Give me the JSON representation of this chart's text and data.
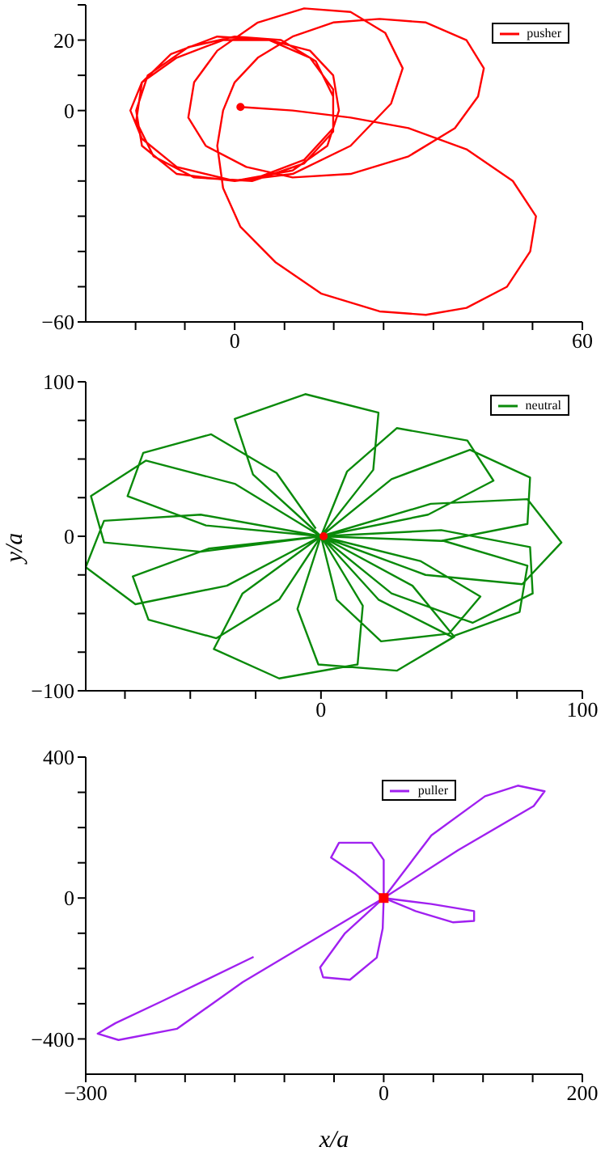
{
  "chart_data": [
    {
      "type": "line",
      "xlim": [
        -25.7,
        60
      ],
      "xticks": [
        {
          "value": -17.1,
          "label": null
        },
        {
          "value": -8.6,
          "label": null
        },
        0,
        {
          "value": 8.6,
          "label": null
        },
        {
          "value": 17.1,
          "label": null
        },
        {
          "value": 25.7,
          "label": null
        },
        {
          "value": 34.3,
          "label": null
        },
        {
          "value": 42.9,
          "label": null
        },
        {
          "value": 51.4,
          "label": null
        },
        60
      ],
      "ylim": [
        -60,
        30
      ],
      "yticks": [
        -60,
        {
          "value": -50,
          "label": null
        },
        {
          "value": -40,
          "label": null
        },
        {
          "value": -30,
          "label": null
        },
        {
          "value": -20,
          "label": null
        },
        {
          "value": -10,
          "label": null
        },
        0,
        {
          "value": 10,
          "label": null
        },
        20,
        {
          "value": 30,
          "label": null
        }
      ],
      "legend": "top right",
      "series": [
        {
          "name": "pusher",
          "color": "#ff0000",
          "x": [
            1,
            10,
            20,
            30,
            40,
            48,
            52,
            51,
            47,
            40,
            33,
            25,
            15,
            7,
            1,
            -2,
            -3,
            -2,
            0,
            4,
            10,
            17,
            25,
            33,
            40,
            43,
            42,
            38,
            30,
            20,
            10,
            2,
            -5,
            -8,
            -7,
            -3,
            4,
            12,
            20,
            26,
            29,
            27,
            20,
            10,
            0,
            -10,
            -16,
            -18,
            -16,
            -10,
            -2,
            6,
            13,
            17,
            18,
            16,
            10,
            0,
            -10,
            -16,
            -17,
            -15,
            -8,
            0,
            8,
            14,
            17,
            17,
            12,
            3,
            -7,
            -14,
            -17,
            -16,
            -11,
            -3,
            6,
            13,
            17,
            17,
            12,
            4
          ],
          "values": [
            1,
            0,
            -2,
            -5,
            -11,
            -20,
            -30,
            -40,
            -50,
            -56,
            -58,
            -57,
            -52,
            -43,
            -33,
            -22,
            -10,
            0,
            8,
            15,
            21,
            25,
            26,
            25,
            20,
            12,
            4,
            -5,
            -13,
            -18,
            -19,
            -16,
            -10,
            -2,
            8,
            17,
            25,
            29,
            28,
            22,
            12,
            2,
            -10,
            -18,
            -20,
            -16,
            -8,
            0,
            8,
            15,
            20,
            20,
            17,
            10,
            0,
            -10,
            -17,
            -20,
            -18,
            -10,
            0,
            10,
            18,
            21,
            20,
            14,
            4,
            -6,
            -15,
            -20,
            -19,
            -13,
            -3,
            8,
            16,
            21,
            20,
            15,
            6,
            -5,
            -14,
            -19
          ]
        },
        {
          "type": "scatter",
          "color": "#ff0000",
          "marker": "circle",
          "x": [
            1
          ],
          "values": [
            1
          ]
        }
      ]
    },
    {
      "type": "line",
      "xlim": [
        -90,
        100
      ],
      "xticks": [
        {
          "value": -75,
          "label": null
        },
        {
          "value": -50,
          "label": null
        },
        {
          "value": -25,
          "label": null
        },
        0,
        {
          "value": 25,
          "label": null
        },
        {
          "value": 50,
          "label": null
        },
        {
          "value": 75,
          "label": null
        },
        100
      ],
      "ylim": [
        -100,
        100
      ],
      "yticks": [
        -100,
        {
          "value": -75,
          "label": null
        },
        {
          "value": -50,
          "label": null
        },
        {
          "value": -25,
          "label": null
        },
        0,
        {
          "value": 25,
          "label": null
        },
        {
          "value": 50,
          "label": null
        },
        {
          "value": 75,
          "label": null
        },
        100
      ],
      "ylabel": "y/a",
      "legend": "top right",
      "series": [
        {
          "name": "neutral",
          "color": "#0a8a0a",
          "x": [
            0,
            -26,
            -33,
            -6,
            22,
            20,
            0,
            10,
            29,
            56,
            66,
            41,
            0,
            27,
            57,
            80,
            79,
            46,
            0,
            42,
            79,
            92,
            77,
            40,
            0,
            46,
            80,
            81,
            58,
            27,
            0,
            47,
            79,
            76,
            50,
            22,
            0,
            38,
            61,
            49,
            23,
            6,
            0,
            35,
            51,
            29,
            -1,
            -9,
            0,
            16,
            14,
            -16,
            -41,
            -30,
            0,
            -16,
            -40,
            -66,
            -72,
            -43,
            0,
            -36,
            -71,
            -90,
            -83,
            -46,
            0,
            -46,
            -83,
            -88,
            -67,
            -33,
            0,
            -44,
            -74,
            -68,
            -42,
            -17,
            -2
          ],
          "values": [
            0,
            40,
            76,
            92,
            80,
            43,
            0,
            42,
            70,
            62,
            36,
            14,
            0,
            37,
            56,
            38,
            8,
            -3,
            0,
            21,
            24,
            -4,
            -31,
            -25,
            0,
            4,
            -7,
            -37,
            -56,
            -37,
            0,
            -3,
            -19,
            -49,
            -65,
            -41,
            0,
            -16,
            -39,
            -63,
            -68,
            -41,
            0,
            -32,
            -65,
            -87,
            -83,
            -47,
            0,
            -45,
            -83,
            -92,
            -73,
            -37,
            0,
            -41,
            -66,
            -54,
            -26,
            -8,
            0,
            -32,
            -44,
            -20,
            10,
            14,
            0,
            -10,
            -4,
            26,
            49,
            34,
            0,
            7,
            26,
            54,
            66,
            41,
            5
          ]
        },
        {
          "type": "scatter",
          "color": "#ff0000",
          "marker": "circle",
          "x": [
            1
          ],
          "values": [
            0
          ]
        }
      ]
    },
    {
      "type": "line",
      "xlim": [
        -300,
        200
      ],
      "xticks": [
        -300,
        {
          "value": -250,
          "label": null
        },
        {
          "value": -200,
          "label": null
        },
        {
          "value": -150,
          "label": null
        },
        {
          "value": -100,
          "label": null
        },
        {
          "value": -50,
          "label": null
        },
        0,
        {
          "value": 50,
          "label": null
        },
        {
          "value": 100,
          "label": null
        },
        {
          "value": 150,
          "label": null
        },
        200
      ],
      "ylim": [
        -500,
        400
      ],
      "yticks": [
        -400,
        {
          "value": -300,
          "label": null
        },
        {
          "value": -200,
          "label": null
        },
        {
          "value": -100,
          "label": null
        },
        0,
        {
          "value": 100,
          "label": null
        },
        {
          "value": 200,
          "label": null
        },
        {
          "value": 300,
          "label": null
        },
        400
      ],
      "xlabel": "x/a",
      "legend": "top right",
      "series": [
        {
          "name": "puller",
          "color": "#a020f0",
          "x": [
            0,
            -28,
            -53,
            -45,
            -12,
            0,
            0,
            48,
            91,
            91,
            70,
            32,
            0,
            -1,
            -7,
            -34,
            -61,
            -64,
            -39,
            0,
            48,
            102,
            135,
            162,
            151,
            75,
            0,
            -142,
            -208,
            -267,
            -288,
            -270,
            -224,
            -131
          ],
          "values": [
            0,
            67,
            115,
            157,
            157,
            108,
            0,
            -17,
            -37,
            -65,
            -69,
            -37,
            0,
            -86,
            -169,
            -232,
            -225,
            -197,
            -100,
            0,
            178,
            289,
            319,
            303,
            261,
            136,
            0,
            -239,
            -371,
            -403,
            -385,
            -355,
            -294,
            -167
          ]
        },
        {
          "type": "scatter",
          "color": "#ff0000",
          "marker": "square",
          "x": [
            0
          ],
          "values": [
            0
          ]
        }
      ]
    }
  ]
}
